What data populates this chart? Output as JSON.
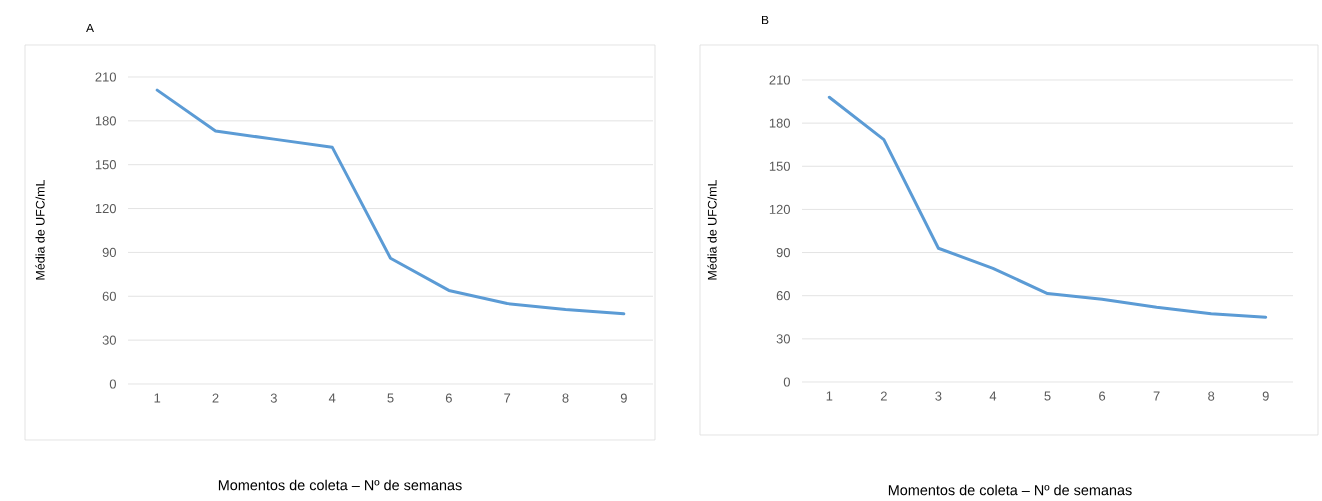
{
  "chart_data": [
    {
      "type": "line",
      "title": "A",
      "xlabel": "Momentos de coleta – Nº de semanas",
      "ylabel": "Média de UFC/mL",
      "categories": [
        "1",
        "2",
        "3",
        "4",
        "5",
        "6",
        "7",
        "8",
        "9"
      ],
      "values": [
        201,
        173,
        167.5,
        162,
        86,
        64,
        55,
        51,
        48
      ],
      "color": "#5b9bd5",
      "ylim": [
        0,
        210
      ],
      "yticks": [
        0,
        30,
        60,
        90,
        120,
        150,
        180,
        210
      ],
      "grid": "y",
      "marker": "none",
      "line_style": "solid"
    },
    {
      "type": "line",
      "title": "B",
      "xlabel": "Momentos de coleta – Nº de semanas",
      "ylabel": "Média de UFC/mL",
      "categories": [
        "1",
        "2",
        "3",
        "4",
        "5",
        "6",
        "7",
        "8",
        "9"
      ],
      "values": [
        198,
        168.5,
        93,
        79,
        61.5,
        57.5,
        52,
        47.5,
        45
      ],
      "color": "#5b9bd5",
      "ylim": [
        0,
        210
      ],
      "yticks": [
        0,
        30,
        60,
        90,
        120,
        150,
        180,
        210
      ],
      "grid": "y",
      "marker": "none",
      "line_style": "solid"
    }
  ]
}
